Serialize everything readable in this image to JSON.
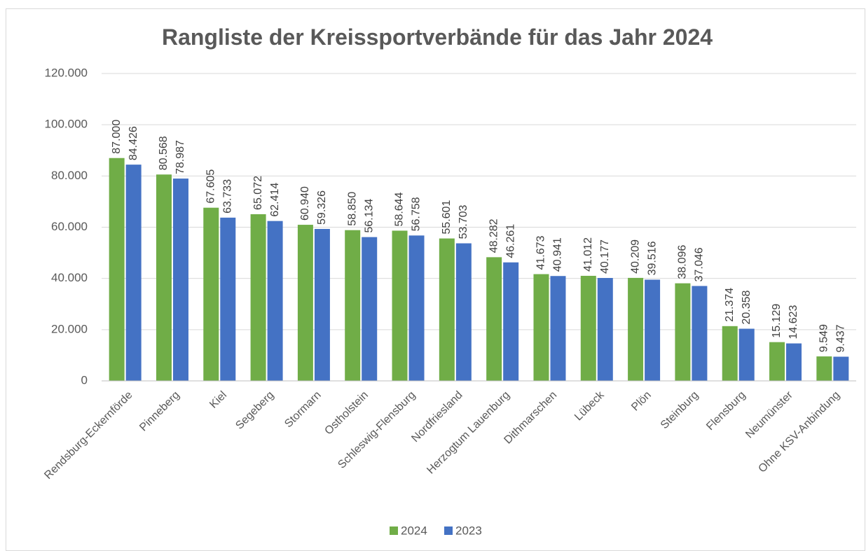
{
  "chart_data": {
    "type": "bar",
    "title": "Rangliste der Kreissportverbände für das Jahr 2024",
    "categories": [
      "Rendsburg-Eckernförde",
      "Pinneberg",
      "Kiel",
      "Segeberg",
      "Stormarn",
      "Ostholstein",
      "Schleswig-Flensburg",
      "Nordfriesland",
      "Herzogtum Lauenburg",
      "Dithmarschen",
      "Lübeck",
      "Plön",
      "Steinburg",
      "Flensburg",
      "Neumünster",
      "Ohne KSV-Anbindung"
    ],
    "series": [
      {
        "name": "2024",
        "color": "#70ad47",
        "values": [
          87000,
          80568,
          67605,
          65072,
          60940,
          58850,
          58644,
          55601,
          48282,
          41673,
          41012,
          40209,
          38096,
          21374,
          15129,
          9549
        ],
        "value_labels": [
          "87.000",
          "80.568",
          "67.605",
          "65.072",
          "60.940",
          "58.850",
          "58.644",
          "55.601",
          "48.282",
          "41.673",
          "41.012",
          "40.209",
          "38.096",
          "21.374",
          "15.129",
          "9.549"
        ]
      },
      {
        "name": "2023",
        "color": "#4472c4",
        "values": [
          84426,
          78987,
          63733,
          62414,
          59326,
          56134,
          56758,
          53703,
          46261,
          40941,
          40177,
          39516,
          37046,
          20358,
          14623,
          9437
        ],
        "value_labels": [
          "84.426",
          "78.987",
          "63.733",
          "62.414",
          "59.326",
          "56.134",
          "56.758",
          "53.703",
          "46.261",
          "40.941",
          "40.177",
          "39.516",
          "37.046",
          "20.358",
          "14.623",
          "9.437"
        ]
      }
    ],
    "ylim": [
      0,
      120000
    ],
    "yticks": [
      0,
      {
        "value": 20000,
        "label": "20.000"
      },
      {
        "value": 40000,
        "label": "40.000"
      },
      {
        "value": 60000,
        "label": "60.000"
      },
      {
        "value": 80000,
        "label": "80.000"
      },
      {
        "value": 100000,
        "label": "100.000"
      },
      {
        "value": 120000,
        "label": "120.000"
      }
    ],
    "grid": true,
    "legend": "bottom"
  }
}
